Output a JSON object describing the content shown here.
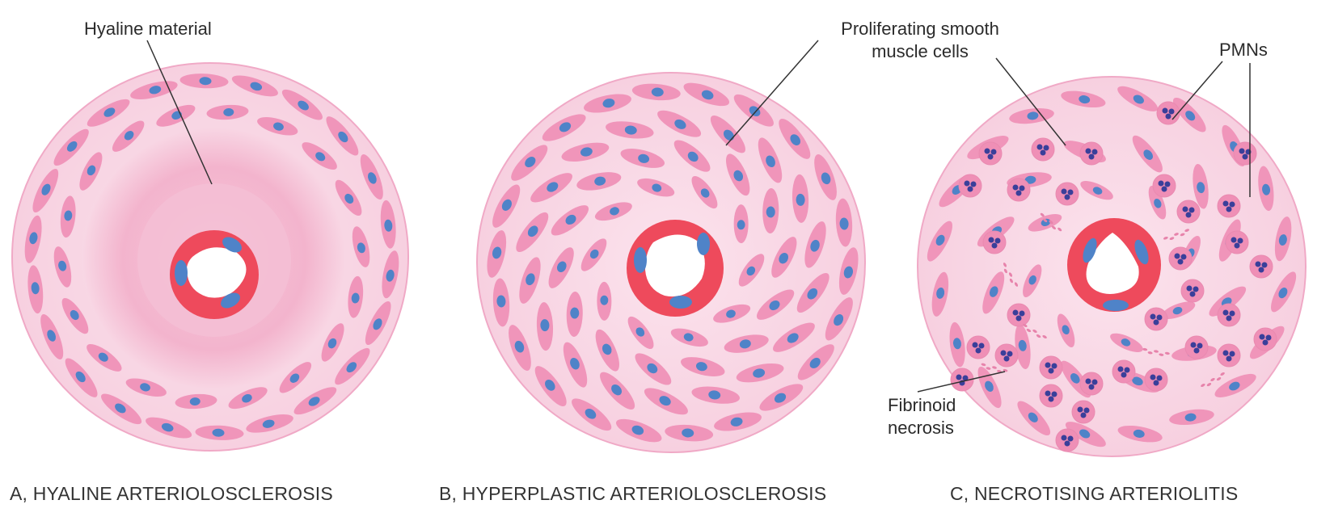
{
  "panels": [
    {
      "id": "A",
      "caption": "A, HYALINE ARTERIOLOSCLEROSIS",
      "annotations": [
        "Hyaline material"
      ]
    },
    {
      "id": "B",
      "caption": "B, HYPERPLASTIC ARTERIOLOSCLEROSIS",
      "annotations": [
        "Proliferating smooth",
        "muscle cells"
      ]
    },
    {
      "id": "C",
      "caption": "C, NECROTISING ARTERIOLITIS",
      "annotations": [
        "PMNs",
        "Fibrinoid",
        "necrosis"
      ]
    }
  ],
  "colors": {
    "tissue_light": "#f9dbe8",
    "hyaline": "#f1a6c4",
    "smooth_muscle": "#ef8fb6",
    "nucleus": "#4f83c8",
    "endothelium": "#ee4a5c",
    "pmn_nucleus": "#3a3f9a"
  }
}
